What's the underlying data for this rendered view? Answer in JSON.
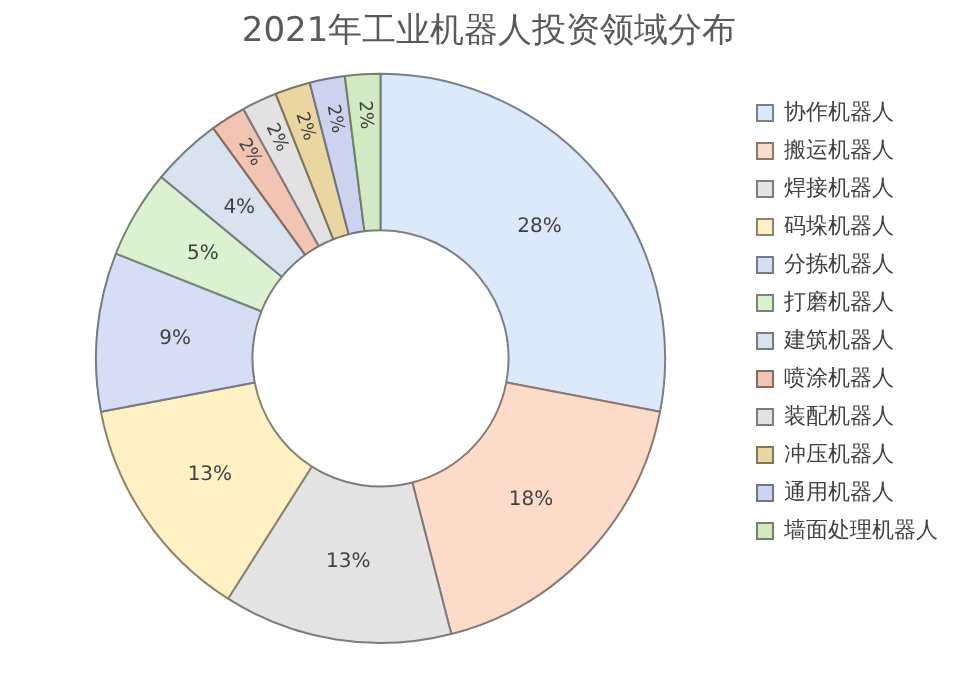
{
  "chart_data": {
    "type": "donut",
    "title": "2021年工业机器人投资领域分布",
    "categories": [
      "协作机器人",
      "搬运机器人",
      "焊接机器人",
      "码垛机器人",
      "分拣机器人",
      "打磨机器人",
      "建筑机器人",
      "喷涂机器人",
      "装配机器人",
      "冲压机器人",
      "通用机器人",
      "墙面处理机器人"
    ],
    "values": [
      28,
      18,
      13,
      13,
      9,
      5,
      4,
      2,
      2,
      2,
      2,
      2
    ],
    "value_labels": [
      "28%",
      "18%",
      "13%",
      "13%",
      "9%",
      "5%",
      "4%",
      "2%",
      "2%",
      "2%",
      "2%",
      "2%"
    ],
    "colors": [
      "#dce9fb",
      "#fcdcc8",
      "#e4e4e4",
      "#fff1c4",
      "#d6def5",
      "#dbf1cf",
      "#d9e2ef",
      "#f2c4b2",
      "#e2e2e2",
      "#ead6a0",
      "#ccd3ee",
      "#d2e9c2"
    ],
    "legend": "right"
  }
}
